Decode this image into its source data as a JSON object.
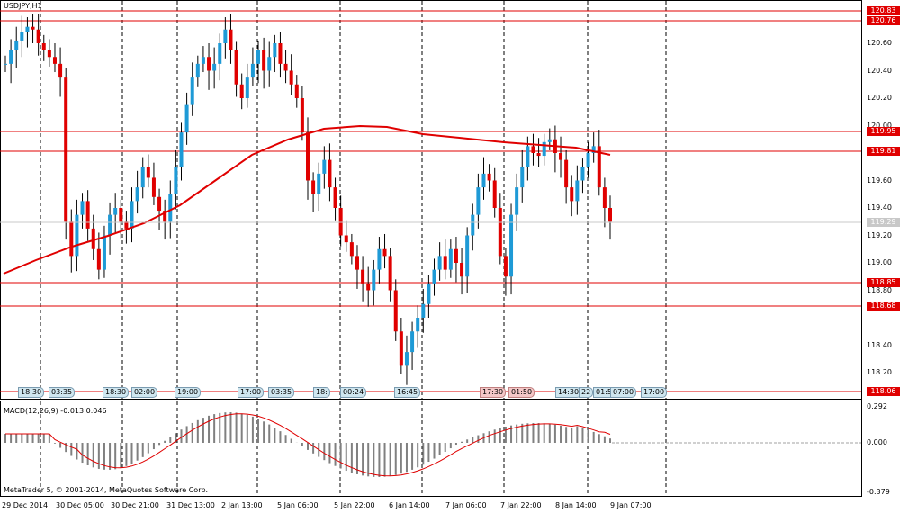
{
  "window": {
    "symbol_title": "USDJPY,H1",
    "copyright": "MetaTrader 5, © 2001-2014, MetaQuotes Software Corp."
  },
  "price_axis": {
    "ticks": [
      "120.60",
      "120.40",
      "120.20",
      "120.00",
      "119.60",
      "119.40",
      "119.20",
      "119.00",
      "118.80",
      "118.40",
      "118.20"
    ],
    "ymin": 118.06,
    "ymax": 120.83
  },
  "horizontal_levels": [
    {
      "value": "120.83",
      "color": "#e00000"
    },
    {
      "value": "120.76",
      "color": "#e00000"
    },
    {
      "value": "119.95",
      "color": "#e00000"
    },
    {
      "value": "119.81",
      "color": "#e00000"
    },
    {
      "value": "118.85",
      "color": "#e00000"
    },
    {
      "value": "118.68",
      "color": "#e00000"
    },
    {
      "value": "118.06",
      "color": "#e00000"
    }
  ],
  "current_price": "119.29",
  "macd": {
    "title": "MACD(12,26,9) -0.013 0.046",
    "ticks": [
      "0.292",
      "0.000",
      "-0.379"
    ]
  },
  "time_axis": [
    "29 Dec 2014",
    "30 Dec 05:00",
    "30 Dec 21:00",
    "31 Dec 13:00",
    "2 Jan 13:00",
    "5 Jan 06:00",
    "5 Jan 22:00",
    "6 Jan 14:00",
    "7 Jan 06:00",
    "7 Jan 22:00",
    "8 Jan 14:00",
    "9 Jan 07:00"
  ],
  "event_tags": [
    {
      "label": "18:30",
      "style": "blue"
    },
    {
      "label": "03:35",
      "style": "blue"
    },
    {
      "label": "18:30",
      "style": "blue"
    },
    {
      "label": "02:00",
      "style": "blue"
    },
    {
      "label": "19:00",
      "style": "blue"
    },
    {
      "label": "17:00",
      "style": "blue"
    },
    {
      "label": "03:35",
      "style": "blue"
    },
    {
      "label": "18:",
      "style": "blue"
    },
    {
      "label": "00:24",
      "style": "blue"
    },
    {
      "label": "16:45",
      "style": "blue"
    },
    {
      "label": "17:30",
      "style": "red"
    },
    {
      "label": "01:50",
      "style": "red"
    },
    {
      "label": "14:30",
      "style": "blue"
    },
    {
      "label": "22",
      "style": "blue"
    },
    {
      "label": "01:5",
      "style": "blue"
    },
    {
      "label": "07:00",
      "style": "blue"
    },
    {
      "label": "17:00",
      "style": "blue"
    }
  ],
  "colors": {
    "bull": "#1e9ad6",
    "bear": "#e00000",
    "ma": "#e00000",
    "grid": "#000000",
    "macd_hist": "#808080",
    "macd_signal": "#e00000"
  }
}
